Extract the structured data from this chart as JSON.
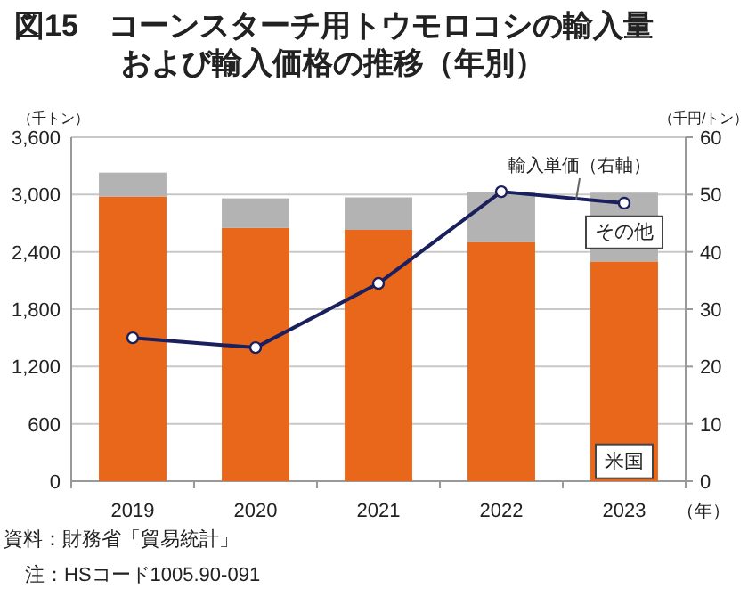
{
  "chart_data": {
    "type": "bar",
    "title": "図15　コーンスターチ用トウモロコシの輸入量",
    "subtitle": "および輸入価格の推移（年別）",
    "ylabel": "（千トン）",
    "y2label": "（千円/トン）",
    "xlabel": "（年）",
    "categories": [
      "2019",
      "2020",
      "2021",
      "2022",
      "2023"
    ],
    "stacked": true,
    "series": [
      {
        "name": "米国",
        "color": "#e8671b",
        "values": [
          2980,
          2650,
          2630,
          2500,
          2300
        ]
      },
      {
        "name": "その他",
        "color": "#b3b3b3",
        "values": [
          250,
          310,
          340,
          530,
          720
        ]
      },
      {
        "name": "輸入単価（右軸）",
        "type": "line",
        "axis": "y2",
        "color": "#1a1f5e",
        "marker": "circle",
        "values": [
          25,
          23.3,
          34.5,
          50.5,
          48.5
        ]
      }
    ],
    "ylim": [
      0,
      3600
    ],
    "yticks": [
      {
        "value": 0,
        "label": "0"
      },
      {
        "value": 600,
        "label": "600"
      },
      {
        "value": 1200,
        "label": "1,200"
      },
      {
        "value": 1800,
        "label": "1,800"
      },
      {
        "value": 2400,
        "label": "2,400"
      },
      {
        "value": 3000,
        "label": "3,000"
      },
      {
        "value": 3600,
        "label": "3,600"
      }
    ],
    "y2lim": [
      0,
      60
    ],
    "y2ticks": [
      0,
      10,
      20,
      30,
      40,
      50,
      60
    ],
    "grid": "y",
    "legend": false,
    "annotations": [
      "資料：財務省「貿易統計」",
      "注：HSコード1005.90-091"
    ]
  }
}
